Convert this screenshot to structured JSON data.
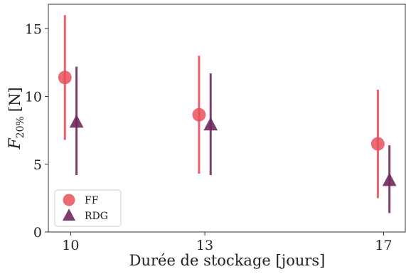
{
  "chart_data": {
    "type": "scatter",
    "xlabel": "Durée de stockage [jours]",
    "ylabel_main": "F",
    "ylabel_sub": "20%",
    "ylabel_unit": "[N]",
    "xlim": [
      9.5,
      17.5
    ],
    "ylim": [
      0,
      16.8
    ],
    "x_ticks": [
      10,
      13,
      17
    ],
    "x_tick_labels": [
      "10",
      "13",
      "17"
    ],
    "y_ticks": [
      0,
      5,
      10,
      15
    ],
    "y_tick_labels": [
      "0",
      "5",
      "10",
      "15"
    ],
    "grid": false,
    "legend_position": "lower-left",
    "series": [
      {
        "name": "FF",
        "marker": "circle",
        "color": "#e8505b",
        "offset": -0.13,
        "points": [
          {
            "x": 10,
            "y": 11.4,
            "low": 6.8,
            "high": 16.0
          },
          {
            "x": 13,
            "y": 8.65,
            "low": 4.3,
            "high": 13.0
          },
          {
            "x": 17,
            "y": 6.5,
            "low": 2.5,
            "high": 10.5
          }
        ]
      },
      {
        "name": "RDG",
        "marker": "triangle",
        "color": "#6e2a5e",
        "offset": 0.13,
        "points": [
          {
            "x": 10,
            "y": 8.1,
            "low": 4.2,
            "high": 12.2
          },
          {
            "x": 13,
            "y": 7.9,
            "low": 4.2,
            "high": 11.7
          },
          {
            "x": 17,
            "y": 3.8,
            "low": 1.4,
            "high": 6.4
          }
        ]
      }
    ]
  }
}
